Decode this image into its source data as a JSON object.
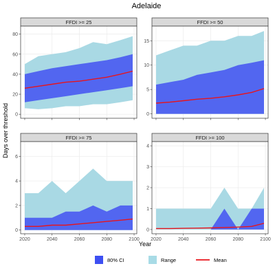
{
  "title": "Adelaide",
  "xlabel": "Year",
  "ylabel": "Days over threshold",
  "legend": [
    {
      "label": "80% CI",
      "color": "#3d4ff2",
      "kind": "fill"
    },
    {
      "label": "Range",
      "color": "#a8dbe6",
      "kind": "fill"
    },
    {
      "label": "Mean",
      "color": "#e8141b",
      "kind": "line"
    }
  ],
  "colors": {
    "ci": "#5266f0",
    "range": "#a9d9e4",
    "mean": "#e8141b",
    "strip": "#d9d9d9",
    "grid": "#ebebeb"
  },
  "chart_data": [
    {
      "type": "area",
      "panel": "FFDI >= 25",
      "x": [
        2020,
        2030,
        2040,
        2050,
        2060,
        2070,
        2080,
        2090,
        2099
      ],
      "xlim": [
        2017,
        2102
      ],
      "ylim": [
        -4,
        88
      ],
      "yticks": [
        0,
        20,
        40,
        60,
        80
      ],
      "xticks": [
        2020,
        2040,
        2060,
        2080,
        2100
      ],
      "series": [
        {
          "name": "Range",
          "lower": [
            6,
            5,
            6,
            8,
            8,
            10,
            10,
            12,
            14
          ],
          "upper": [
            50,
            58,
            60,
            62,
            66,
            72,
            70,
            74,
            78
          ]
        },
        {
          "name": "80% CI",
          "lower": [
            12,
            14,
            16,
            18,
            20,
            22,
            24,
            26,
            28
          ],
          "upper": [
            40,
            43,
            46,
            48,
            50,
            52,
            54,
            57,
            60
          ]
        },
        {
          "name": "Mean",
          "values": [
            26,
            28,
            30,
            32,
            33,
            35,
            37,
            40,
            43
          ]
        }
      ]
    },
    {
      "type": "area",
      "panel": "FFDI >= 50",
      "x": [
        2020,
        2030,
        2040,
        2050,
        2060,
        2070,
        2080,
        2090,
        2099
      ],
      "xlim": [
        2017,
        2102
      ],
      "ylim": [
        -0.9,
        18
      ],
      "yticks": [
        0,
        5,
        10,
        15
      ],
      "xticks": [
        2020,
        2040,
        2060,
        2080,
        2100
      ],
      "series": [
        {
          "name": "Range",
          "lower": [
            0,
            0,
            0,
            0,
            0,
            0,
            0,
            0,
            0
          ],
          "upper": [
            12,
            13,
            14,
            14,
            15,
            15,
            16,
            16,
            17
          ]
        },
        {
          "name": "80% CI",
          "lower": [
            0,
            0,
            0,
            0,
            0,
            0,
            0,
            0,
            0
          ],
          "upper": [
            6,
            6.5,
            7,
            8,
            8.5,
            9,
            10,
            10.5,
            11
          ]
        },
        {
          "name": "Mean",
          "values": [
            2.2,
            2.4,
            2.7,
            3,
            3.2,
            3.5,
            3.9,
            4.4,
            5.2
          ]
        }
      ]
    },
    {
      "type": "area",
      "panel": "FFDI >= 75",
      "x": [
        2020,
        2030,
        2040,
        2050,
        2060,
        2070,
        2080,
        2090,
        2099
      ],
      "xlim": [
        2017,
        2102
      ],
      "ylim": [
        -0.3,
        7.2
      ],
      "yticks": [
        0,
        2,
        4,
        6
      ],
      "xticks": [
        2020,
        2040,
        2060,
        2080,
        2100
      ],
      "series": [
        {
          "name": "Range",
          "lower": [
            0,
            0,
            0,
            0,
            0,
            0,
            0,
            0,
            0
          ],
          "upper": [
            3,
            3,
            4,
            3,
            4,
            5,
            4,
            4,
            4
          ]
        },
        {
          "name": "80% CI",
          "lower": [
            0,
            0,
            0,
            0,
            0,
            0,
            0,
            0,
            0
          ],
          "upper": [
            1,
            1,
            1,
            1.5,
            1.5,
            2,
            1.5,
            2,
            2
          ]
        },
        {
          "name": "Mean",
          "values": [
            0.3,
            0.3,
            0.4,
            0.4,
            0.5,
            0.6,
            0.7,
            0.8,
            0.9
          ]
        }
      ]
    },
    {
      "type": "area",
      "panel": "FFDI >= 100",
      "x": [
        2020,
        2030,
        2040,
        2050,
        2060,
        2070,
        2080,
        2090,
        2099
      ],
      "xlim": [
        2017,
        2102
      ],
      "ylim": [
        -0.2,
        4.2
      ],
      "yticks": [
        0,
        1,
        2,
        3,
        4
      ],
      "xticks": [
        2020,
        2040,
        2060,
        2080,
        2100
      ],
      "series": [
        {
          "name": "Range",
          "lower": [
            0,
            0,
            0,
            0,
            0,
            0,
            0,
            0,
            0
          ],
          "upper": [
            1,
            1,
            1,
            1,
            1,
            2,
            1,
            1,
            2
          ]
        },
        {
          "name": "80% CI",
          "lower": [
            0,
            0,
            0,
            0,
            0,
            0,
            0,
            0,
            0
          ],
          "upper": [
            0,
            0,
            0,
            0,
            0,
            1,
            0,
            1,
            1
          ]
        },
        {
          "name": "Mean",
          "values": [
            0.05,
            0.05,
            0.06,
            0.07,
            0.08,
            0.1,
            0.12,
            0.15,
            0.3
          ]
        }
      ]
    }
  ]
}
